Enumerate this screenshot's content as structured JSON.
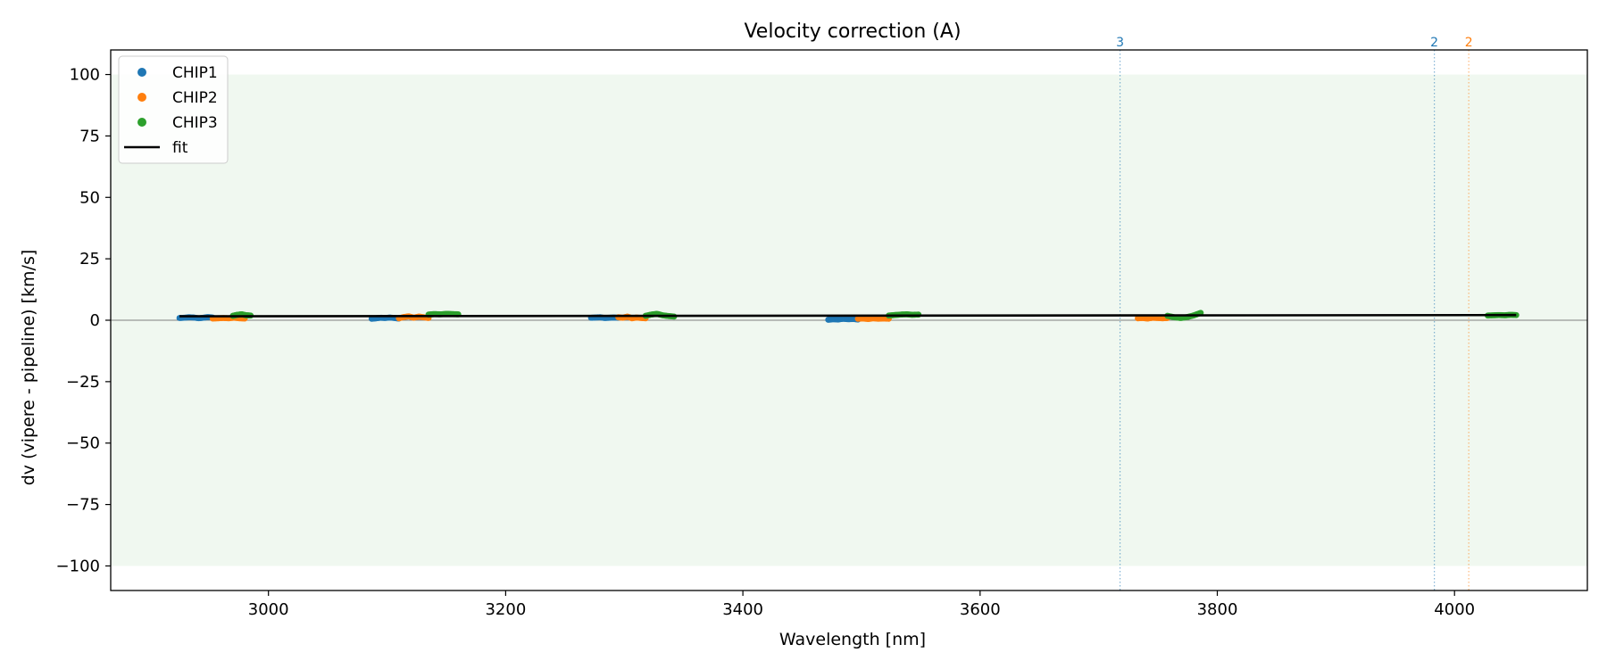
{
  "chart_data": {
    "type": "scatter",
    "title": "Velocity correction (A)",
    "xlabel": "Wavelength [nm]",
    "ylabel": "dv (vipere - pipeline) [km/s]",
    "xlim": [
      2867,
      4112
    ],
    "ylim": [
      -110,
      110
    ],
    "xticks": [
      3000,
      3200,
      3400,
      3600,
      3800,
      4000
    ],
    "yticks": [
      100,
      75,
      50,
      25,
      0,
      -25,
      -50,
      -75,
      -100
    ],
    "xtick_labels": [
      "3000",
      "3200",
      "3400",
      "3600",
      "3800",
      "4000"
    ],
    "ytick_labels": [
      "100",
      "75",
      "50",
      "25",
      "0",
      "−25",
      "−50",
      "−75",
      "−100"
    ],
    "shaded_band": {
      "y_min": -100,
      "y_max": 100,
      "color": "#2ca02c"
    },
    "zero_line": 0,
    "grid": false,
    "legend": {
      "placement": "top-left",
      "entries": [
        {
          "label": "CHIP1",
          "kind": "marker",
          "color": "#1f77b4"
        },
        {
          "label": "CHIP2",
          "kind": "marker",
          "color": "#ff7f0e"
        },
        {
          "label": "CHIP3",
          "kind": "marker",
          "color": "#2ca02c"
        },
        {
          "label": "fit",
          "kind": "line",
          "color": "#000000"
        }
      ]
    },
    "series": [
      {
        "name": "CHIP1",
        "color": "#1f77b4",
        "segments": [
          {
            "x_start": 2925,
            "x_end": 2953,
            "y": [
              0.9,
              1.0,
              1.2,
              1.1,
              0.8,
              1.0,
              1.3,
              1.1
            ]
          },
          {
            "x_start": 3087,
            "x_end": 3110,
            "y": [
              0.6,
              0.8,
              1.0,
              0.9,
              1.1,
              0.9,
              0.7
            ]
          },
          {
            "x_start": 3272,
            "x_end": 3295,
            "y": [
              1.0,
              1.1,
              1.2,
              0.9,
              1.0,
              1.1,
              1.0
            ]
          },
          {
            "x_start": 3472,
            "x_end": 3497,
            "y": [
              0.2,
              0.4,
              0.3,
              0.6,
              0.4,
              0.5,
              0.3
            ]
          }
        ]
      },
      {
        "name": "CHIP2",
        "color": "#ff7f0e",
        "segments": [
          {
            "x_start": 2953,
            "x_end": 2980,
            "y": [
              0.7,
              0.8,
              0.9,
              0.8,
              1.0,
              0.8,
              0.7
            ]
          },
          {
            "x_start": 3110,
            "x_end": 3135,
            "y": [
              0.8,
              1.3,
              1.6,
              1.0,
              1.5,
              1.2,
              0.9
            ]
          },
          {
            "x_start": 3295,
            "x_end": 3318,
            "y": [
              1.2,
              1.0,
              1.5,
              0.8,
              1.1,
              0.9,
              0.8
            ]
          },
          {
            "x_start": 3497,
            "x_end": 3523,
            "y": [
              0.6,
              0.7,
              0.5,
              0.8,
              0.6,
              0.7,
              0.6
            ]
          },
          {
            "x_start": 3733,
            "x_end": 3758,
            "y": [
              0.8,
              0.9,
              0.7,
              1.0,
              0.9,
              0.8,
              0.9
            ]
          }
        ]
      },
      {
        "name": "CHIP3",
        "color": "#2ca02c",
        "segments": [
          {
            "x_start": 2970,
            "x_end": 2985,
            "y": [
              1.8,
              2.2,
              2.4,
              2.0,
              1.9
            ]
          },
          {
            "x_start": 3135,
            "x_end": 3160,
            "y": [
              2.3,
              2.5,
              2.4,
              2.6,
              2.5,
              2.4
            ]
          },
          {
            "x_start": 3318,
            "x_end": 3342,
            "y": [
              1.8,
              2.3,
              2.6,
              2.0,
              1.7,
              1.5
            ]
          },
          {
            "x_start": 3523,
            "x_end": 3548,
            "y": [
              1.9,
              2.1,
              2.3,
              2.4,
              2.2,
              2.3
            ]
          },
          {
            "x_start": 3758,
            "x_end": 3786,
            "y": [
              1.8,
              1.2,
              0.9,
              1.3,
              2.0,
              3.0
            ]
          },
          {
            "x_start": 4028,
            "x_end": 4052,
            "y": [
              1.9,
              2.0,
              2.1,
              2.0,
              2.2,
              2.1
            ]
          }
        ]
      }
    ],
    "fit": {
      "name": "fit",
      "color": "#000000",
      "x": [
        2925,
        4052
      ],
      "y": [
        1.6,
        2.1
      ]
    },
    "vertical_markers": [
      {
        "x": 3718,
        "label": "3",
        "color": "#1f77b4"
      },
      {
        "x": 3983,
        "label": "2",
        "color": "#1f77b4"
      },
      {
        "x": 4012,
        "label": "2",
        "color": "#ff7f0e"
      }
    ]
  }
}
